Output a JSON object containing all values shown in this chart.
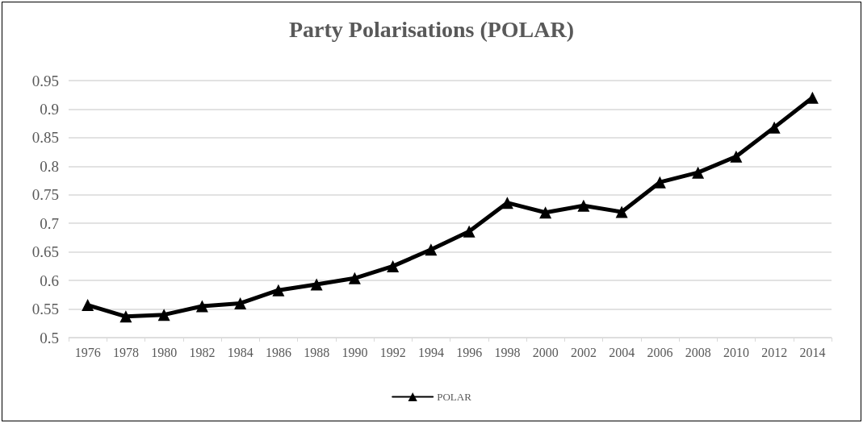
{
  "chart_data": {
    "type": "line",
    "title": "Party Polarisations (POLAR)",
    "categories": [
      "1976",
      "1978",
      "1980",
      "1982",
      "1984",
      "1986",
      "1988",
      "1990",
      "1992",
      "1994",
      "1996",
      "1998",
      "2000",
      "2002",
      "2004",
      "2006",
      "2008",
      "2010",
      "2012",
      "2014"
    ],
    "series": [
      {
        "name": "POLAR",
        "color": "#000000",
        "values": [
          0.557,
          0.537,
          0.54,
          0.555,
          0.56,
          0.583,
          0.593,
          0.604,
          0.625,
          0.654,
          0.686,
          0.736,
          0.719,
          0.731,
          0.72,
          0.772,
          0.789,
          0.817,
          0.868,
          0.92
        ]
      }
    ],
    "ylim": [
      0.5,
      0.95
    ],
    "yticks": [
      0.5,
      0.55,
      0.6,
      0.65,
      0.7,
      0.75,
      0.8,
      0.85,
      0.9,
      0.95
    ],
    "grid": "y",
    "legend": "bottom",
    "marker": "triangle",
    "line_style": "solid"
  }
}
